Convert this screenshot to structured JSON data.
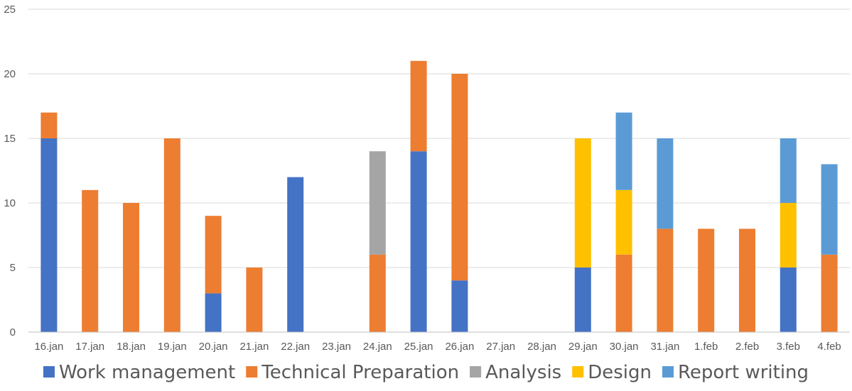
{
  "chart_data": {
    "type": "bar",
    "stacked": true,
    "categories": [
      "16.jan",
      "17.jan",
      "18.jan",
      "19.jan",
      "20.jan",
      "21.jan",
      "22.jan",
      "23.jan",
      "24.jan",
      "25.jan",
      "26.jan",
      "27.jan",
      "28.jan",
      "29.jan",
      "30.jan",
      "31.jan",
      "1.feb",
      "2.feb",
      "3.feb",
      "4.feb"
    ],
    "series": [
      {
        "name": "Work management",
        "color": "#4472c4",
        "values": [
          15,
          0,
          0,
          0,
          3,
          0,
          12,
          0,
          0,
          14,
          4,
          0,
          0,
          5,
          0,
          0,
          0,
          0,
          5,
          0
        ]
      },
      {
        "name": "Technical Preparation",
        "color": "#ed7d31",
        "values": [
          2,
          11,
          10,
          15,
          6,
          5,
          0,
          0,
          6,
          7,
          16,
          0,
          0,
          0,
          6,
          8,
          8,
          8,
          0,
          6
        ]
      },
      {
        "name": "Analysis",
        "color": "#a5a5a5",
        "values": [
          0,
          0,
          0,
          0,
          0,
          0,
          0,
          0,
          8,
          0,
          0,
          0,
          0,
          0,
          0,
          0,
          0,
          0,
          0,
          0
        ]
      },
      {
        "name": "Design",
        "color": "#ffc000",
        "values": [
          0,
          0,
          0,
          0,
          0,
          0,
          0,
          0,
          0,
          0,
          0,
          0,
          0,
          10,
          5,
          0,
          0,
          0,
          5,
          0
        ]
      },
      {
        "name": "Report writing",
        "color": "#5b9bd5",
        "values": [
          0,
          0,
          0,
          0,
          0,
          0,
          0,
          0,
          0,
          0,
          0,
          0,
          0,
          0,
          6,
          7,
          0,
          0,
          5,
          7
        ]
      }
    ],
    "ylim": [
      0,
      25
    ],
    "yticks": [
      "0",
      "5",
      "10",
      "15",
      "20",
      "25"
    ],
    "grid": true,
    "legend": "bottom"
  }
}
